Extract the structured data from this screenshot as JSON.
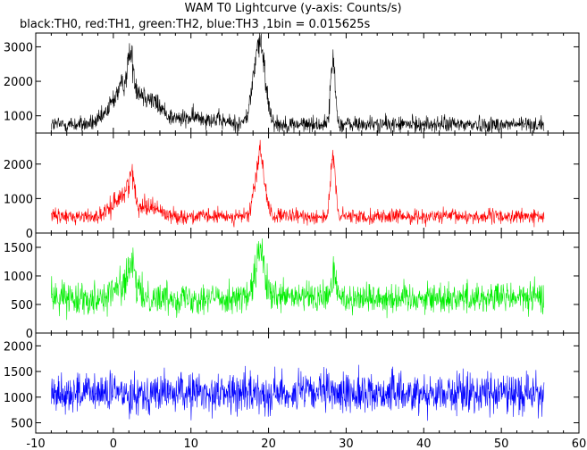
{
  "chart_data": {
    "type": "line",
    "title": "WAM T0 Lightcurve (y-axis: Counts/s)",
    "subtitle": "black:TH0, red:TH1, green:TH2, blue:TH3 ,1bin = 0.015625s",
    "x_range": [
      -10,
      60
    ],
    "x_ticks": [
      -10,
      0,
      10,
      20,
      30,
      40,
      50,
      60
    ],
    "x_start": -8,
    "x_end": 55.5,
    "grid": false,
    "panels": [
      {
        "color": "#000000",
        "ylim": [
          500,
          3400
        ],
        "y_ticks": [
          1000,
          2000,
          3000
        ],
        "baseline": 750,
        "noise": 170,
        "features": [
          {
            "x": 1.5,
            "peak": 1100,
            "width": 1.6
          },
          {
            "x": 2.2,
            "peak": 900,
            "width": 0.35
          },
          {
            "x": 4.8,
            "peak": 600,
            "width": 1.6
          },
          {
            "x": 18.8,
            "peak": 2350,
            "width": 0.75
          },
          {
            "x": 28.3,
            "peak": 1850,
            "width": 0.3
          },
          {
            "x": 11.0,
            "peak": 200,
            "width": 2.5
          }
        ]
      },
      {
        "color": "#ff0000",
        "ylim": [
          0,
          2900
        ],
        "y_ticks": [
          0,
          1000,
          2000
        ],
        "baseline": 480,
        "noise": 150,
        "features": [
          {
            "x": 1.2,
            "peak": 600,
            "width": 1.2
          },
          {
            "x": 2.3,
            "peak": 800,
            "width": 0.35
          },
          {
            "x": 4.5,
            "peak": 300,
            "width": 1.4
          },
          {
            "x": 18.9,
            "peak": 1750,
            "width": 0.6
          },
          {
            "x": 28.3,
            "peak": 1700,
            "width": 0.3
          }
        ]
      },
      {
        "color": "#00ee00",
        "ylim": [
          0,
          1750
        ],
        "y_ticks": [
          0,
          500,
          1000,
          1500
        ],
        "baseline": 620,
        "noise": 190,
        "features": [
          {
            "x": 1.5,
            "peak": 250,
            "width": 1.2
          },
          {
            "x": 2.4,
            "peak": 350,
            "width": 0.4
          },
          {
            "x": 18.9,
            "peak": 800,
            "width": 0.55
          },
          {
            "x": 28.4,
            "peak": 400,
            "width": 0.3
          }
        ]
      },
      {
        "color": "#0000ff",
        "ylim": [
          300,
          2250
        ],
        "y_ticks": [
          500,
          1000,
          1500,
          2000
        ],
        "baseline": 1080,
        "noise": 270,
        "features": []
      }
    ]
  }
}
